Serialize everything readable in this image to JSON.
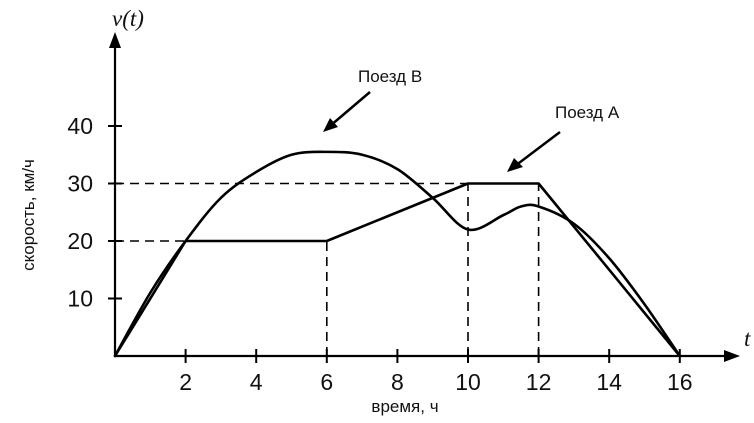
{
  "chart_data": {
    "type": "line",
    "title": "",
    "xlabel": "время, ч",
    "ylabel": "скорость, км/ч",
    "y_axis_symbol": "v(t)",
    "x_axis_symbol": "t",
    "xlim": [
      0,
      17.5
    ],
    "ylim": [
      0,
      48
    ],
    "x_ticks": [
      2,
      4,
      6,
      8,
      10,
      12,
      14,
      16
    ],
    "y_ticks": [
      10,
      20,
      30,
      40
    ],
    "x_tick_labels": [
      "2",
      "4",
      "6",
      "8",
      "10",
      "12",
      "14",
      "16"
    ],
    "y_tick_labels": [
      "10",
      "20",
      "30",
      "40"
    ],
    "grid": false,
    "reference_lines": [
      {
        "from": [
          0,
          20
        ],
        "to": [
          2,
          20
        ]
      },
      {
        "from": [
          0,
          30
        ],
        "to": [
          10,
          30
        ]
      },
      {
        "from": [
          6,
          0
        ],
        "to": [
          6,
          20
        ]
      },
      {
        "from": [
          10,
          0
        ],
        "to": [
          10,
          30
        ]
      },
      {
        "from": [
          12,
          0
        ],
        "to": [
          12,
          30
        ]
      }
    ],
    "series": [
      {
        "name": "Поезд А",
        "style": "polyline",
        "points": [
          [
            0,
            0
          ],
          [
            2,
            20
          ],
          [
            6,
            20
          ],
          [
            10,
            30
          ],
          [
            12,
            30
          ],
          [
            16,
            0
          ]
        ]
      },
      {
        "name": "Поезд В",
        "style": "smooth",
        "points": [
          [
            0,
            0
          ],
          [
            1,
            11
          ],
          [
            2,
            20
          ],
          [
            3,
            27.5
          ],
          [
            4,
            32
          ],
          [
            5,
            35
          ],
          [
            6,
            35.5
          ],
          [
            7,
            35
          ],
          [
            8,
            32.5
          ],
          [
            9,
            27.5
          ],
          [
            10,
            22
          ],
          [
            11,
            24.5
          ],
          [
            11.5,
            26
          ],
          [
            12,
            26
          ],
          [
            13,
            23
          ],
          [
            14,
            17
          ],
          [
            15,
            9
          ],
          [
            16,
            0
          ]
        ]
      }
    ],
    "annotations": [
      {
        "text": "Поезд В",
        "target": "Поезд В"
      },
      {
        "text": "Поезд А",
        "target": "Поезд А"
      }
    ]
  }
}
